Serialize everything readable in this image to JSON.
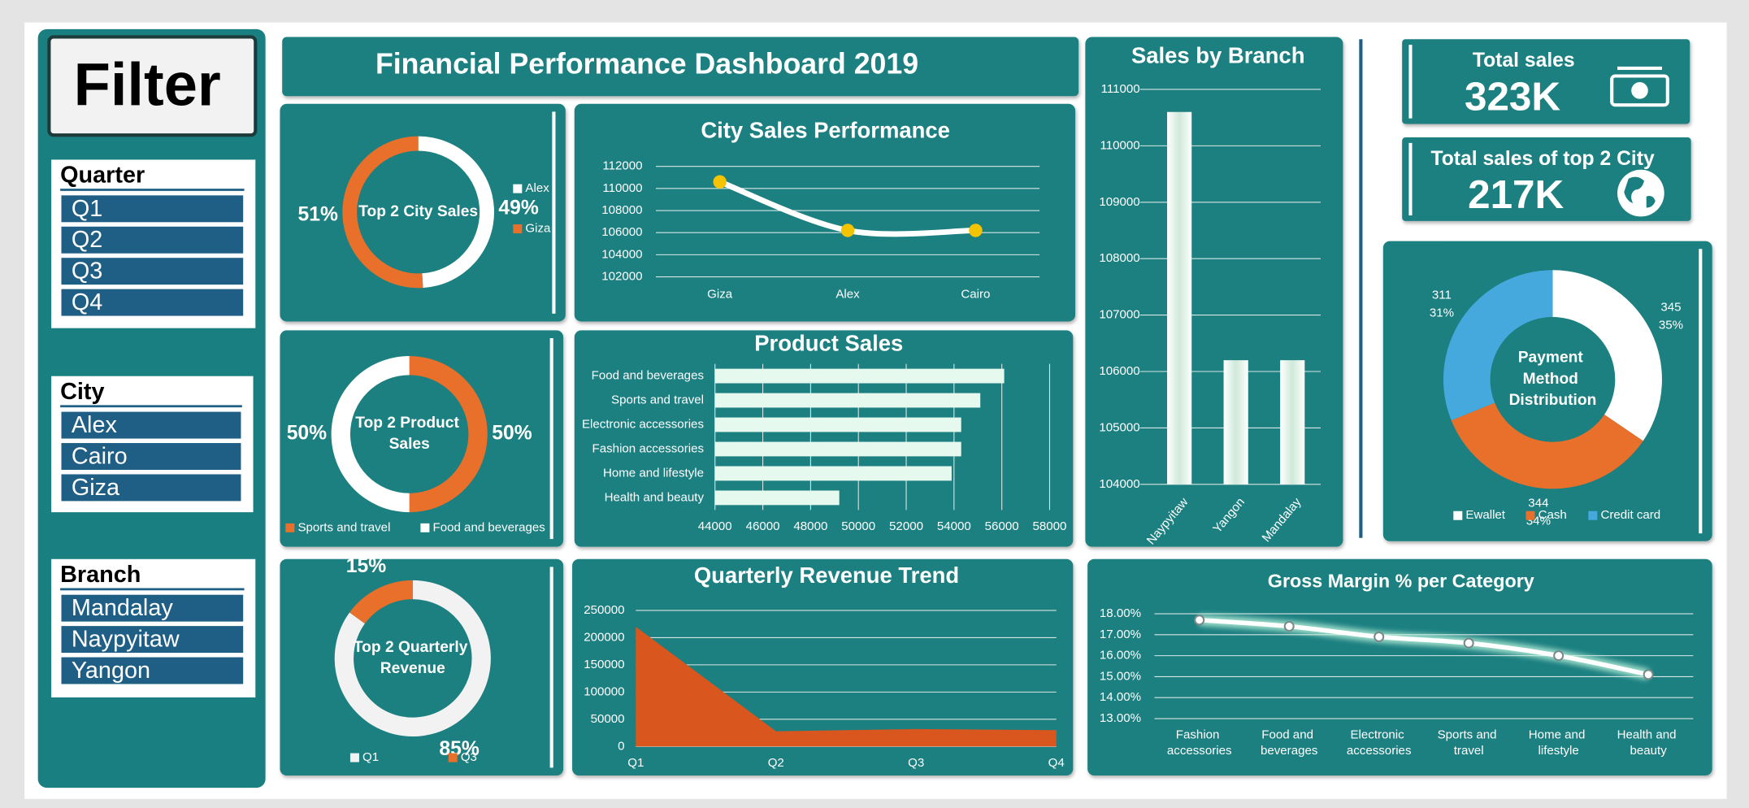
{
  "filter_title": "Filter",
  "slicers": [
    {
      "title": "Quarter",
      "items": [
        "Q1",
        "Q2",
        "Q3",
        "Q4"
      ]
    },
    {
      "title": "City",
      "items": [
        "Alex",
        "Cairo",
        "Giza"
      ]
    },
    {
      "title": "Branch",
      "items": [
        "Mandalay",
        "Naypyitaw",
        "Yangon"
      ]
    }
  ],
  "dashboard_title": "Financial Performance Dashboard 2019",
  "kpis": [
    {
      "label": "Total sales",
      "value": "323K"
    },
    {
      "label": "Total sales of top 2 City",
      "value": "217K"
    }
  ],
  "chart_data": [
    {
      "type": "donut",
      "title": "Top 2 City Sales",
      "categories": [
        "Alex",
        "Giza"
      ],
      "values": [
        49,
        51
      ],
      "value_labels": [
        "49%",
        "51%"
      ],
      "colors": [
        "#ffffff",
        "#e8702a"
      ]
    },
    {
      "type": "line",
      "title": "City Sales Performance",
      "categories": [
        "Giza",
        "Alex",
        "Cairo"
      ],
      "values": [
        110600,
        106200,
        106200
      ],
      "ylim": [
        102000,
        112000
      ],
      "yticks": [
        102000,
        104000,
        106000,
        108000,
        110000,
        112000
      ],
      "color": "#ffffff",
      "marker_color": "#f5c400",
      "smooth": true,
      "grid": true
    },
    {
      "type": "hbar",
      "title": "Product Sales",
      "categories": [
        "Food and beverages",
        "Sports and travel",
        "Electronic accessories",
        "Fashion accessories",
        "Home and lifestyle",
        "Health and beauty"
      ],
      "values": [
        56100,
        55100,
        54300,
        54300,
        53900,
        49200
      ],
      "xlim": [
        44000,
        58000
      ],
      "xticks": [
        44000,
        46000,
        48000,
        50000,
        52000,
        54000,
        56000,
        58000
      ],
      "color": "#e6f9ef",
      "grid": true
    },
    {
      "type": "bar",
      "title": "Sales by Branch",
      "categories": [
        "Naypyitaw",
        "Yangon",
        "Mandalay"
      ],
      "values": [
        110600,
        106200,
        106200
      ],
      "ylim": [
        104000,
        111000
      ],
      "yticks": [
        104000,
        105000,
        106000,
        107000,
        108000,
        109000,
        110000,
        111000
      ],
      "color": "#e6f9ef",
      "grid": true
    },
    {
      "type": "donut",
      "title": "Top 2 Product Sales",
      "categories": [
        "Sports and travel",
        "Food and beverages"
      ],
      "values": [
        50,
        50
      ],
      "value_labels": [
        "50%",
        "50%"
      ],
      "colors": [
        "#e8702a",
        "#ffffff"
      ]
    },
    {
      "type": "area",
      "title": "Quarterly Revenue Trend",
      "categories": [
        "Q1",
        "Q2",
        "Q3",
        "Q4"
      ],
      "values": [
        220000,
        28000,
        32000,
        30000
      ],
      "ylim": [
        0,
        250000
      ],
      "yticks": [
        0,
        50000,
        100000,
        150000,
        200000,
        250000
      ],
      "color": "#d9561e",
      "grid": true
    },
    {
      "type": "donut",
      "title": "Top 2 Quarterly Revenue",
      "categories": [
        "Q1",
        "Q3"
      ],
      "values": [
        85,
        15
      ],
      "value_labels": [
        "85%",
        "15%"
      ],
      "colors": [
        "#f2f2f2",
        "#e8702a"
      ]
    },
    {
      "type": "donut",
      "title": "Payment Method Distribution",
      "categories": [
        "Ewallet",
        "Cash",
        "Credit card"
      ],
      "values": [
        345,
        344,
        311
      ],
      "shares": {
        "values": [
          35,
          34,
          31
        ],
        "value_labels": [
          "35%",
          "34%",
          "31%"
        ]
      },
      "colors": [
        "#ffffff",
        "#e8702a",
        "#45a9de"
      ]
    },
    {
      "type": "line",
      "title": "Gross Margin % per Category",
      "categories": [
        "Fashion accessories",
        "Food and beverages",
        "Electronic accessories",
        "Sports and travel",
        "Home and lifestyle",
        "Health and beauty"
      ],
      "values": [
        17.7,
        17.4,
        16.9,
        16.6,
        16.0,
        15.1
      ],
      "ylim": [
        13,
        18
      ],
      "yticks": [
        {
          "value": 13,
          "label": "13.00%"
        },
        {
          "value": 14,
          "label": "14.00%"
        },
        {
          "value": 15,
          "label": "15.00%"
        },
        {
          "value": 16,
          "label": "16.00%"
        },
        {
          "value": 17,
          "label": "17.00%"
        },
        {
          "value": 18,
          "label": "18.00%"
        }
      ],
      "color": "#ffffff",
      "marker_color": "#ffffff",
      "smooth": true,
      "grid": true
    }
  ]
}
